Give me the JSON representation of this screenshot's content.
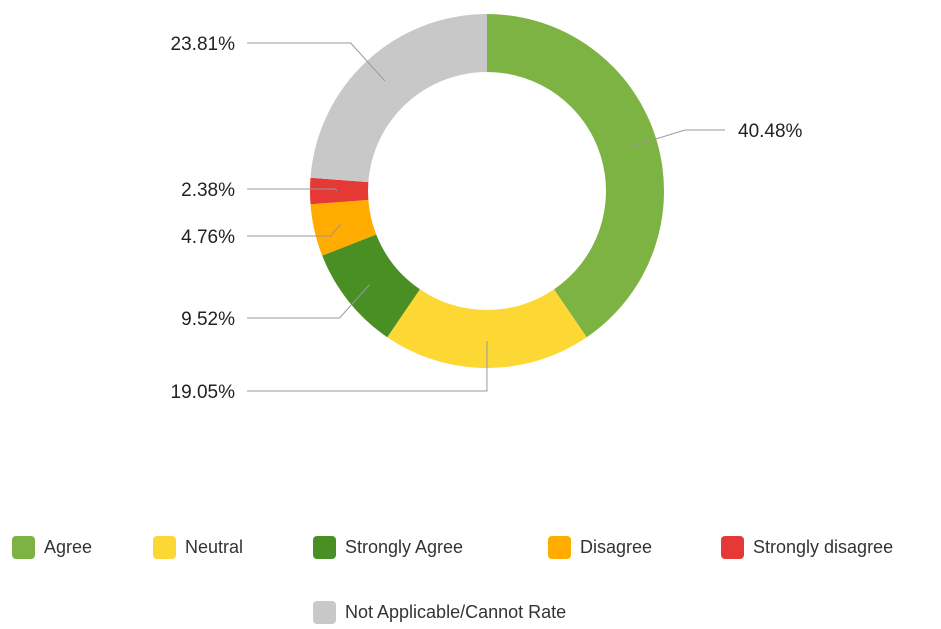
{
  "chart_data": {
    "type": "donut",
    "categories": [
      "Agree",
      "Neutral",
      "Strongly Agree",
      "Disagree",
      "Strongly disagree",
      "Not Applicable/Cannot Rate"
    ],
    "values": [
      40.48,
      19.05,
      9.52,
      4.76,
      2.38,
      23.81
    ],
    "value_labels": [
      "40.48%",
      "19.05%",
      "9.52%",
      "4.76%",
      "2.38%",
      "23.81%"
    ],
    "colors": [
      "#7cb342",
      "#fdd835",
      "#4a8f24",
      "#ffab00",
      "#e53935",
      "#c8c8c8"
    ],
    "legend": "bottom"
  }
}
